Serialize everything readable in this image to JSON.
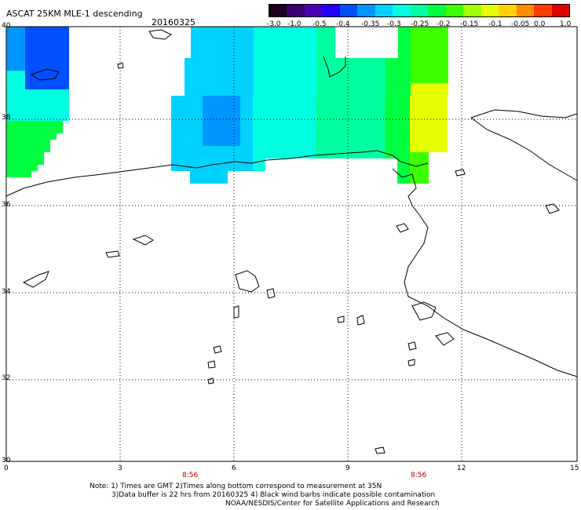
{
  "header": {
    "title": "ASCAT 25KM MLE-1 descending",
    "date": "20160325"
  },
  "colorbar": {
    "ticks": [
      "-3.0",
      "-1.0",
      "-0.5",
      "-0.4",
      "-0.35",
      "-0.3",
      "-0.25",
      "-0.2",
      "-0.15",
      "-0.1",
      "-0.05",
      "0.0",
      "1.0"
    ],
    "colors": [
      "#1a001a",
      "#3b0070",
      "#4a00b4",
      "#2200ff",
      "#0050ff",
      "#0096ff",
      "#00d2ff",
      "#00ffe0",
      "#00ffa0",
      "#00ff40",
      "#3cff00",
      "#a0ff00",
      "#e6ff00",
      "#ffd200",
      "#ff8c00",
      "#ff3c00",
      "#e10000"
    ]
  },
  "map": {
    "lat_labels": [
      "40",
      "38",
      "36",
      "34",
      "32",
      "30"
    ],
    "lon_labels": [
      "0",
      "3",
      "6",
      "9",
      "12",
      "15"
    ],
    "time_labels": [
      "8:56",
      "8:56"
    ]
  },
  "footer": {
    "line1": "Note: 1) Times are GMT 2)Times along bottom correspond to measurement at 35N",
    "line2": "3)Data buffer is 22 hrs from 20160325 4) Black wind barbs indicate possible contamination",
    "line3": "NOAA/NESDIS/Center for Satellite Applications and Research"
  }
}
